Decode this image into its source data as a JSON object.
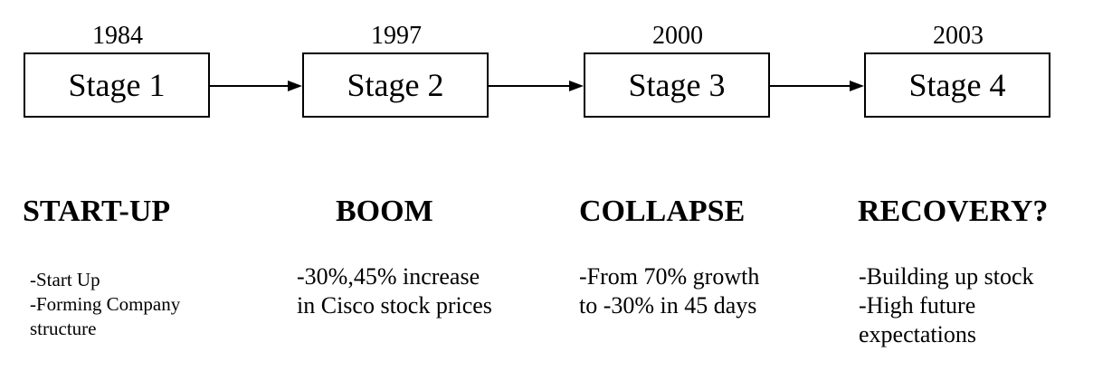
{
  "stages": [
    {
      "year": "1984",
      "label": "Stage 1",
      "heading": "START-UP",
      "lines": [
        "-Start Up",
        "-Forming Company",
        "structure"
      ]
    },
    {
      "year": "1997",
      "label": "Stage 2",
      "heading": "BOOM",
      "lines": [
        "-30%,45% increase",
        "in Cisco stock prices"
      ]
    },
    {
      "year": "2000",
      "label": "Stage 3",
      "heading": "COLLAPSE",
      "lines": [
        "-From 70% growth",
        "to -30% in 45 days"
      ]
    },
    {
      "year": "2003",
      "label": "Stage 4",
      "heading": "RECOVERY?",
      "lines": [
        "-Building up stock",
        "-High future",
        "expectations"
      ]
    }
  ]
}
